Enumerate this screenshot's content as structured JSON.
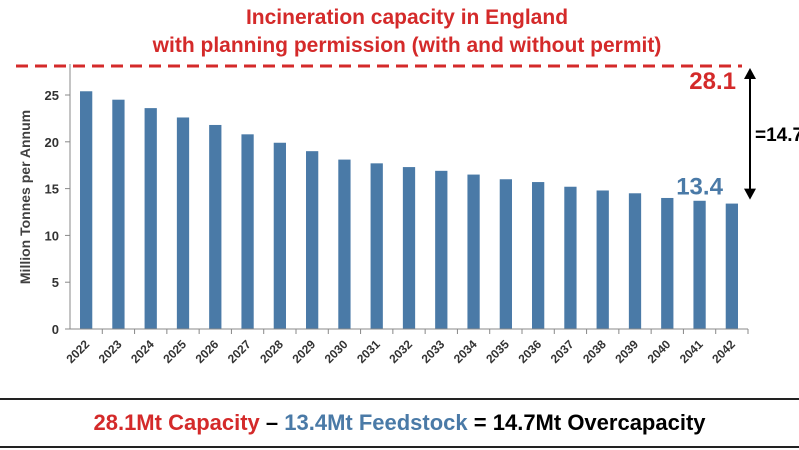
{
  "colors": {
    "capacity": "#d42a2a",
    "feedstock": "#4a7aa7",
    "bar": "#4a7aa7",
    "text": "#000000"
  },
  "chart_data": {
    "type": "bar",
    "title_lines": [
      "Incineration capacity in England",
      "with planning permission (with and without permit)"
    ],
    "ylabel": "Million Tonnes per Annum",
    "xlabel": "",
    "ylim": [
      0,
      28.1
    ],
    "yticks": [
      0,
      5,
      10,
      15,
      20,
      25
    ],
    "grid": false,
    "categories": [
      "2022",
      "2023",
      "2024",
      "2025",
      "2026",
      "2027",
      "2028",
      "2029",
      "2030",
      "2031",
      "2032",
      "2033",
      "2034",
      "2035",
      "2036",
      "2037",
      "2038",
      "2039",
      "2040",
      "2041",
      "2042"
    ],
    "values": [
      25.4,
      24.5,
      23.6,
      22.6,
      21.8,
      20.8,
      19.9,
      19.0,
      18.1,
      17.7,
      17.3,
      16.9,
      16.5,
      16.0,
      15.7,
      15.2,
      14.8,
      14.5,
      14.0,
      13.7,
      13.4
    ],
    "capacity_line": {
      "value": 28.1,
      "label": "28.1"
    },
    "feedstock_label": "13.4",
    "difference_label": "=14.7"
  },
  "footer": {
    "capacity": "28.1Mt Capacity",
    "sep1": " – ",
    "feedstock": "13.4Mt Feedstock",
    "sep2": " = ",
    "overcapacity": "14.7Mt Overcapacity"
  }
}
